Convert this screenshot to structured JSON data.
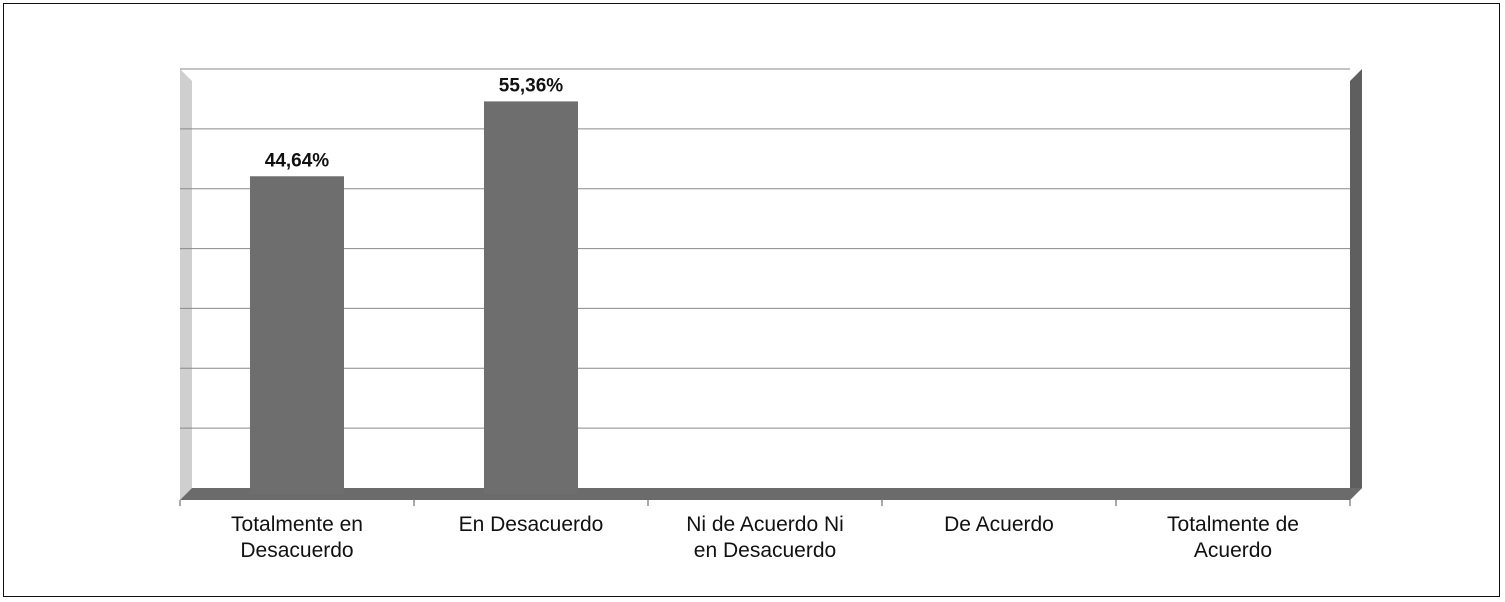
{
  "chart_data": {
    "type": "bar",
    "categories": [
      [
        "Totalmente en",
        "Desacuerdo"
      ],
      [
        "En Desacuerdo"
      ],
      [
        "Ni de Acuerdo Ni",
        "en Desacuerdo"
      ],
      [
        "De Acuerdo"
      ],
      [
        "Totalmente de",
        "Acuerdo"
      ]
    ],
    "values": [
      44.64,
      55.36,
      0,
      0,
      0
    ],
    "data_labels": [
      "44,64%",
      "55,36%",
      "",
      "",
      ""
    ],
    "ylim": [
      0,
      60
    ],
    "grid": true,
    "colors": {
      "bar": "#6e6e6e",
      "floor": "#6b6b6b",
      "right_wall": "#5f5f5f",
      "left_wall": "#cfcfcf",
      "grid": "#8a8a8a"
    }
  }
}
